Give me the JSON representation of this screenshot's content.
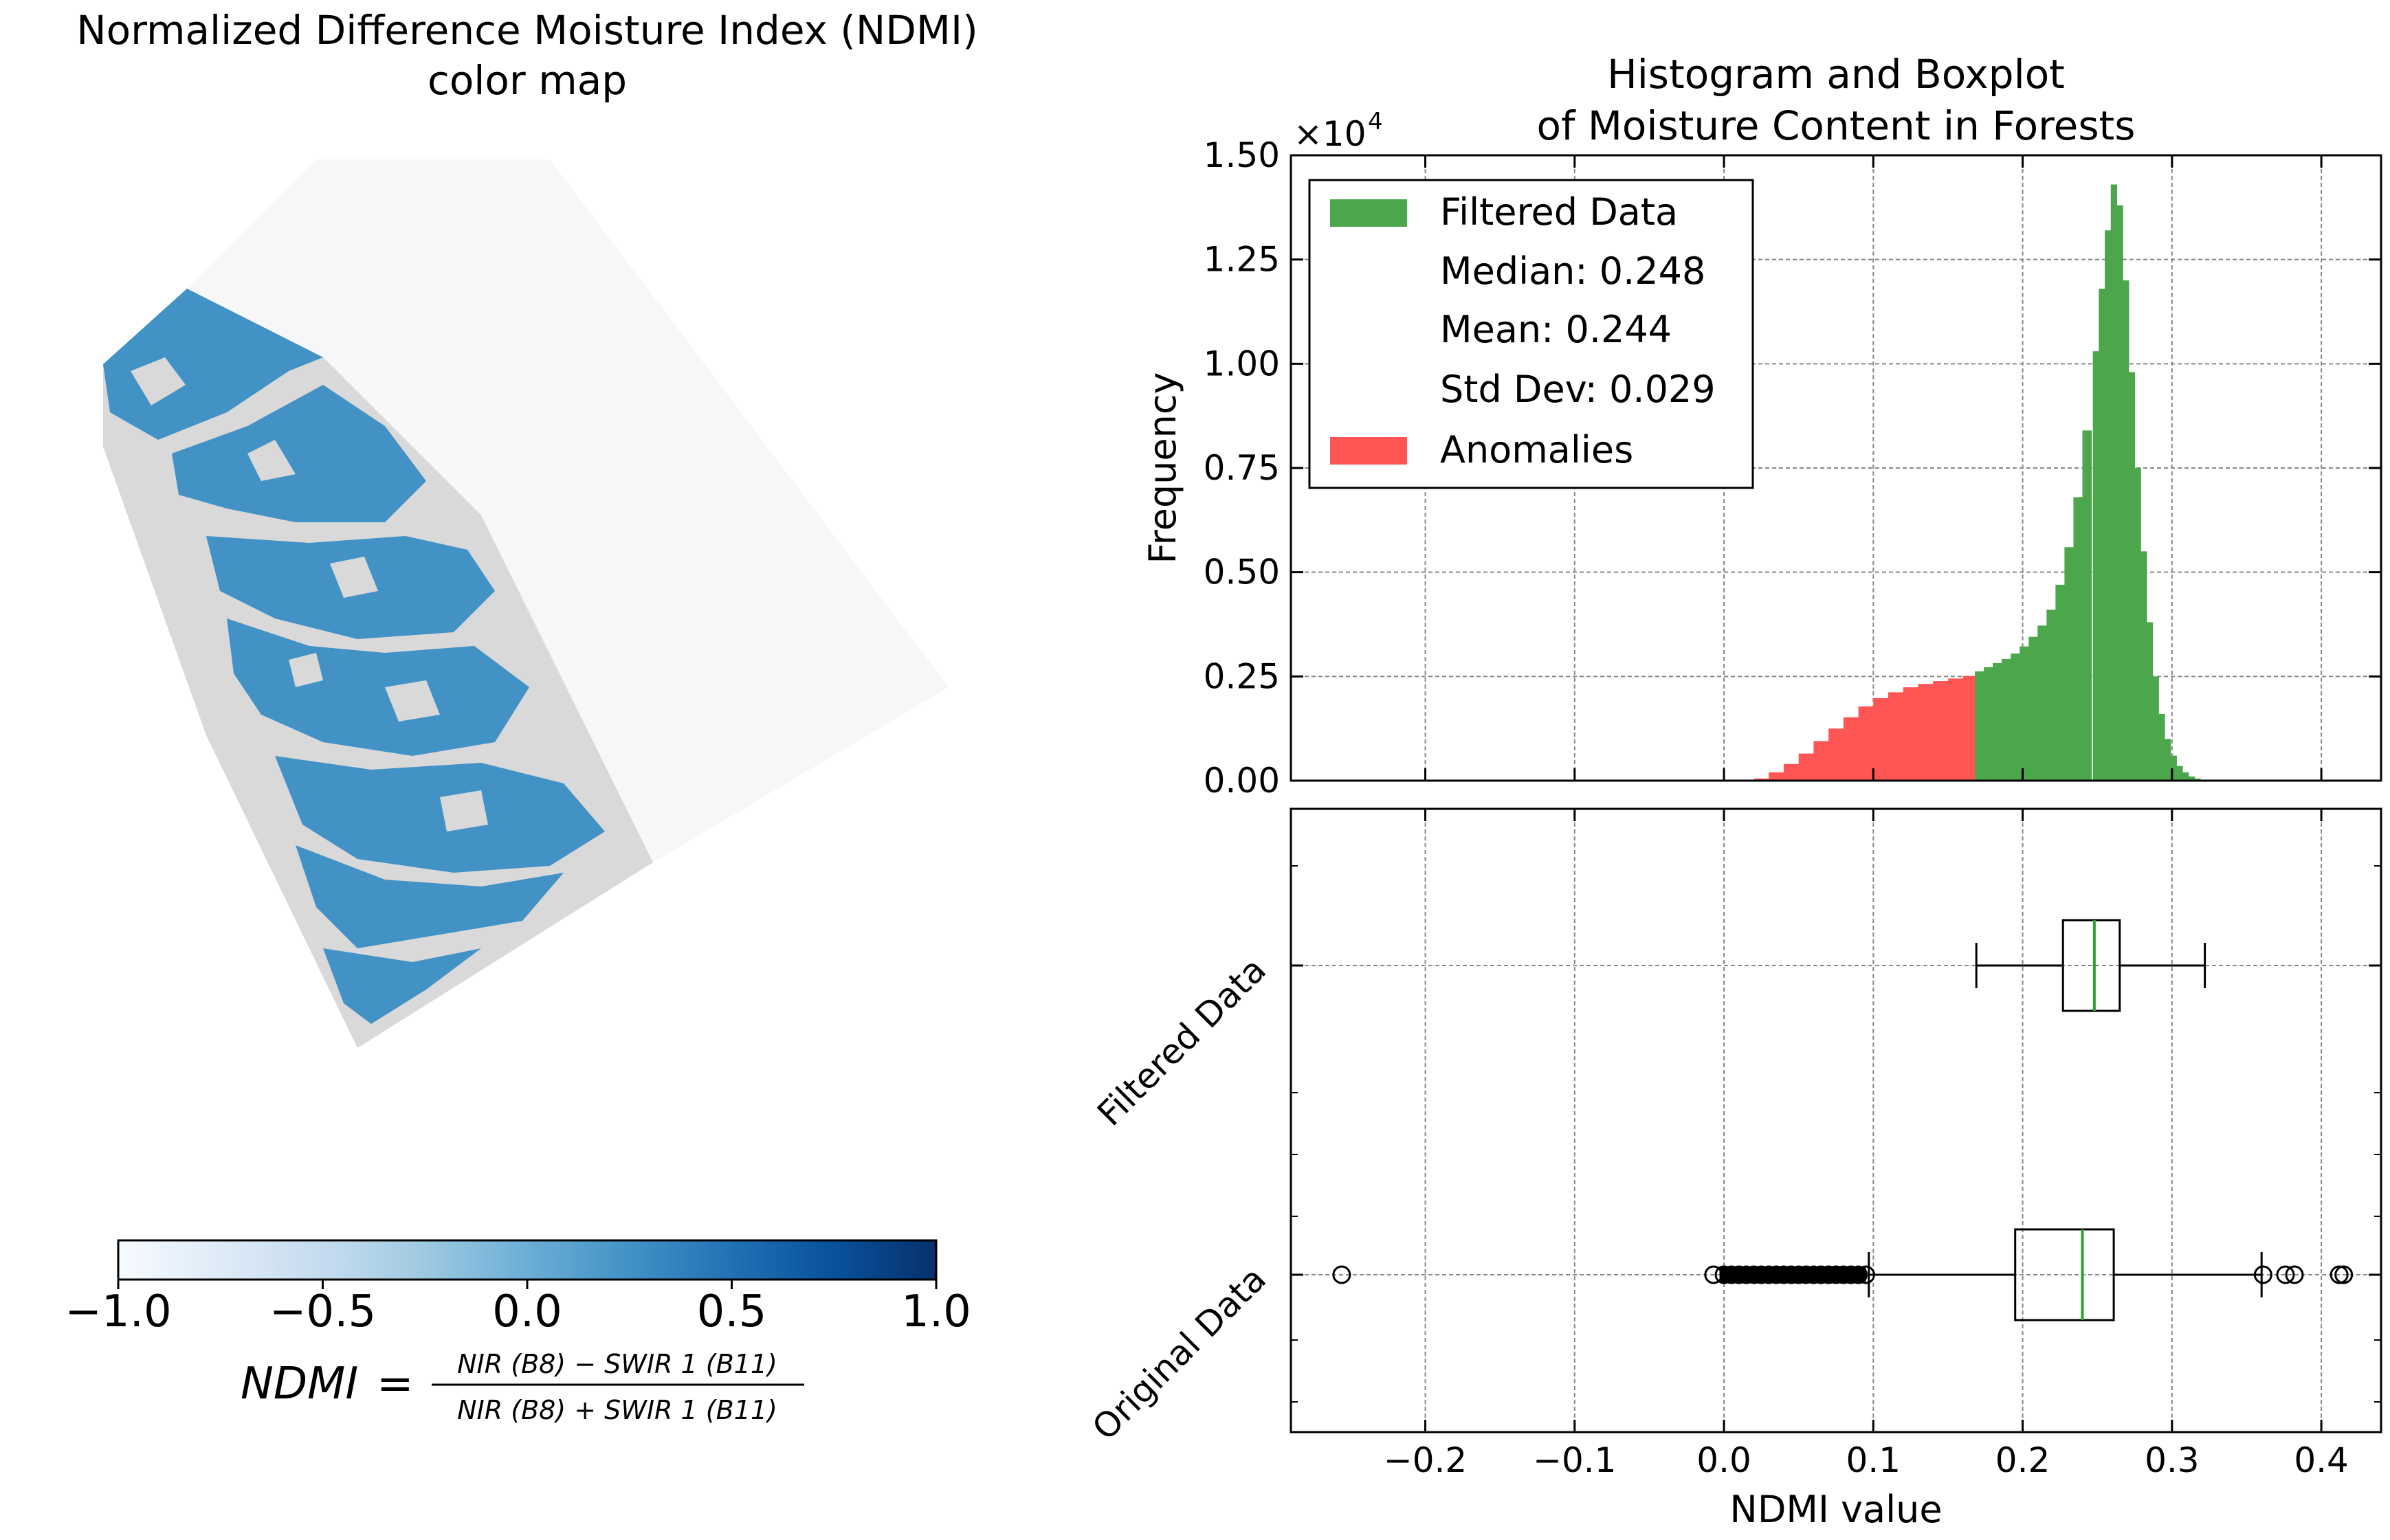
{
  "left": {
    "title_line1": "Normalized Difference Moisture Index (NDMI)",
    "title_line2": "color map",
    "colorbar": {
      "cmap": "Blues",
      "ticks": [
        "−1.0",
        "−0.5",
        "0.0",
        "0.5",
        "1.0"
      ],
      "range": [
        -1.0,
        1.0
      ]
    },
    "formula": {
      "lhs": "NDMI",
      "eq": "=",
      "numerator": "NIR (B8) − SWIR 1 (B11)",
      "denominator": "NIR (B8) + SWIR 1 (B11)"
    },
    "colors": {
      "water_blue": "#4292c6",
      "land_gray": "#d9d9d9",
      "background": "#f7f7f7"
    }
  },
  "hist": {
    "title_line1": "Histogram and Boxplot",
    "title_line2": "of Moisture Content in Forests",
    "ylabel": "Frequency",
    "multiplier": "×10",
    "multiplier_exp": "4",
    "yticks": [
      "0.00",
      "0.25",
      "0.50",
      "0.75",
      "1.00",
      "1.25",
      "1.50"
    ],
    "legend": [
      {
        "label": "Filtered Data",
        "color": "#4ca64c"
      },
      {
        "label": "Median: 0.248"
      },
      {
        "label": "Mean: 0.244"
      },
      {
        "label": "Std Dev: 0.029"
      },
      {
        "label": "Anomalies",
        "color": "#ff5555"
      }
    ],
    "legend_loc": "upper left",
    "grid": true
  },
  "box": {
    "xlabel": "NDMI value",
    "ytick_labels": [
      "Original Data",
      "Filtered Data"
    ],
    "xticks": [
      "−0.2",
      "−0.1",
      "0.0",
      "0.1",
      "0.2",
      "0.3",
      "0.4"
    ],
    "grid": true
  },
  "chart_data": [
    {
      "type": "bar",
      "subtype": "histogram",
      "x_range": [
        -0.29,
        0.44
      ],
      "y_unit_multiplier": 10000,
      "ylim": [
        0,
        1.5
      ],
      "series": [
        {
          "name": "Anomalies",
          "color": "#ff5555",
          "bins": [
            [
              0.025,
              0.005
            ],
            [
              0.035,
              0.02
            ],
            [
              0.045,
              0.04
            ],
            [
              0.055,
              0.065
            ],
            [
              0.065,
              0.095
            ],
            [
              0.075,
              0.125
            ],
            [
              0.085,
              0.152
            ],
            [
              0.095,
              0.178
            ],
            [
              0.105,
              0.198
            ],
            [
              0.115,
              0.212
            ],
            [
              0.125,
              0.224
            ],
            [
              0.135,
              0.232
            ],
            [
              0.145,
              0.239
            ],
            [
              0.155,
              0.245
            ],
            [
              0.165,
              0.251
            ]
          ]
        },
        {
          "name": "Filtered Data",
          "color": "#4ca64c",
          "bins": [
            [
              0.171,
              0.262
            ],
            [
              0.177,
              0.272
            ],
            [
              0.183,
              0.282
            ],
            [
              0.189,
              0.292
            ],
            [
              0.195,
              0.305
            ],
            [
              0.201,
              0.322
            ],
            [
              0.207,
              0.345
            ],
            [
              0.213,
              0.372
            ],
            [
              0.219,
              0.41
            ],
            [
              0.225,
              0.47
            ],
            [
              0.231,
              0.56
            ],
            [
              0.237,
              0.68
            ],
            [
              0.243,
              0.84
            ],
            [
              0.249,
              1.03
            ],
            [
              0.253,
              1.18
            ],
            [
              0.257,
              1.32
            ],
            [
              0.261,
              1.43
            ],
            [
              0.265,
              1.38
            ],
            [
              0.269,
              1.2
            ],
            [
              0.273,
              0.98
            ],
            [
              0.277,
              0.75
            ],
            [
              0.281,
              0.55
            ],
            [
              0.285,
              0.38
            ],
            [
              0.289,
              0.25
            ],
            [
              0.293,
              0.16
            ],
            [
              0.297,
              0.1
            ],
            [
              0.301,
              0.06
            ],
            [
              0.305,
              0.035
            ],
            [
              0.309,
              0.02
            ],
            [
              0.313,
              0.01
            ],
            [
              0.317,
              0.005
            ],
            [
              0.321,
              0.002
            ]
          ]
        }
      ]
    },
    {
      "type": "boxplot",
      "x_range": [
        -0.29,
        0.44
      ],
      "series": [
        {
          "name": "Filtered Data",
          "whislo": 0.169,
          "q1": 0.227,
          "median": 0.248,
          "q3": 0.265,
          "whishi": 0.322,
          "fliers": []
        },
        {
          "name": "Original Data",
          "whislo": 0.097,
          "q1": 0.195,
          "median": 0.24,
          "q3": 0.261,
          "whishi": 0.36,
          "fliers": [
            -0.256,
            -0.007,
            0.0,
            0.005,
            0.01,
            0.015,
            0.02,
            0.025,
            0.03,
            0.035,
            0.04,
            0.045,
            0.05,
            0.055,
            0.06,
            0.065,
            0.07,
            0.075,
            0.08,
            0.085,
            0.09,
            0.095,
            0.361,
            0.376,
            0.382,
            0.412,
            0.415
          ]
        }
      ]
    }
  ]
}
